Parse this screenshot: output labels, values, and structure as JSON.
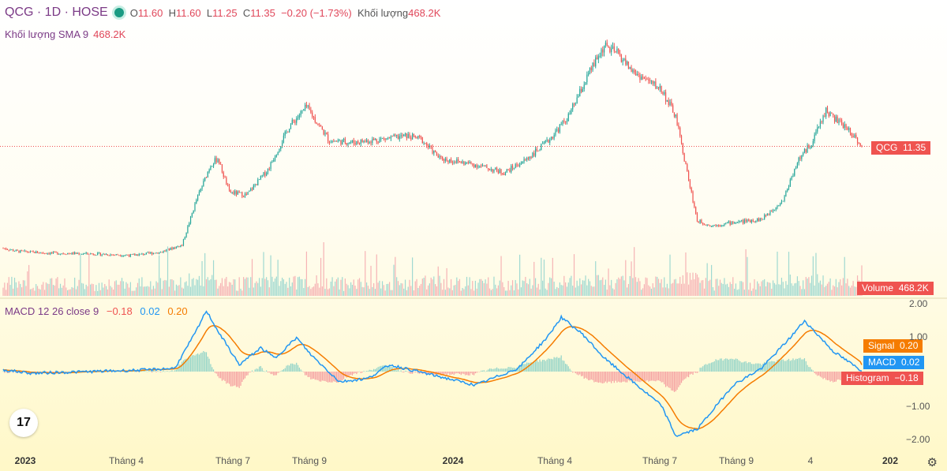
{
  "header": {
    "symbol": "QCG · 1D · HOSE",
    "ohlc": {
      "o_label": "O",
      "o": "11.60",
      "h_label": "H",
      "h": "11.60",
      "l_label": "L",
      "l": "11.25",
      "c_label": "C",
      "c": "11.35",
      "change": "−0.20 (−1.73%)",
      "volume_label": "Khối lượng",
      "volume": "468.2K"
    },
    "volume_sma_label": "Khối lượng SMA 9",
    "volume_sma_value": "468.2K",
    "macd_label": "MACD 12 26 close 9",
    "macd_hist_value": "−0.18",
    "macd_value": "0.02",
    "macd_signal_value": "0.20"
  },
  "price_tag": {
    "symbol": "QCG",
    "value": "11.35"
  },
  "volume_tag": {
    "label": "Volume",
    "value": "468.2K"
  },
  "macd_tags": [
    {
      "label": "Signal",
      "value": "0.20",
      "color": "#f57c00"
    },
    {
      "label": "MACD",
      "value": "0.02",
      "color": "#2196f3"
    },
    {
      "label": "Histogram",
      "value": "−0.18",
      "color": "#ef5350"
    }
  ],
  "macd_axis": [
    "2.00",
    "1.00",
    "−1.00",
    "−2.00"
  ],
  "x_axis": [
    {
      "label": "2023",
      "bold": true
    },
    {
      "label": "Tháng 4",
      "bold": false
    },
    {
      "label": "Tháng 7",
      "bold": false
    },
    {
      "label": "Tháng 9",
      "bold": false
    },
    {
      "label": "2024",
      "bold": true
    },
    {
      "label": "Tháng 4",
      "bold": false
    },
    {
      "label": "Tháng 7",
      "bold": false
    },
    {
      "label": "Tháng 9",
      "bold": false
    },
    {
      "label": "4",
      "bold": false
    },
    {
      "label": "202",
      "bold": true
    }
  ],
  "colors": {
    "up": "#26a69a",
    "down": "#ef5350",
    "macd": "#2196f3",
    "signal": "#f57c00",
    "accent": "#7b3a86"
  },
  "chart_data": {
    "type": "candlestick",
    "price_anchors": [
      [
        0,
        5.0
      ],
      [
        10,
        4.8
      ],
      [
        30,
        4.7
      ],
      [
        60,
        4.65
      ],
      [
        90,
        4.55
      ],
      [
        110,
        4.75
      ],
      [
        125,
        5.2
      ],
      [
        135,
        8.0
      ],
      [
        145,
        10.2
      ],
      [
        150,
        10.6
      ],
      [
        158,
        8.5
      ],
      [
        170,
        8.3
      ],
      [
        185,
        9.9
      ],
      [
        200,
        12.6
      ],
      [
        212,
        13.8
      ],
      [
        228,
        11.7
      ],
      [
        245,
        11.6
      ],
      [
        270,
        11.85
      ],
      [
        282,
        12.0
      ],
      [
        292,
        11.8
      ],
      [
        305,
        10.6
      ],
      [
        330,
        10.2
      ],
      [
        350,
        9.7
      ],
      [
        365,
        10.5
      ],
      [
        380,
        11.6
      ],
      [
        395,
        13.2
      ],
      [
        410,
        16.0
      ],
      [
        420,
        17.6
      ],
      [
        430,
        17.1
      ],
      [
        440,
        16.0
      ],
      [
        460,
        14.9
      ],
      [
        470,
        13.2
      ],
      [
        478,
        9.7
      ],
      [
        485,
        6.7
      ],
      [
        495,
        6.4
      ],
      [
        510,
        6.6
      ],
      [
        530,
        6.8
      ],
      [
        545,
        8.0
      ],
      [
        555,
        10.4
      ],
      [
        565,
        11.6
      ],
      [
        575,
        13.6
      ],
      [
        582,
        13.0
      ],
      [
        592,
        12.3
      ],
      [
        600,
        11.35
      ]
    ],
    "volume_sma": "468.2K",
    "macd": {
      "anchors": [
        [
          0,
          0.05
        ],
        [
          20,
          -0.05
        ],
        [
          60,
          0.0
        ],
        [
          100,
          0.05
        ],
        [
          120,
          0.1
        ],
        [
          135,
          1.2
        ],
        [
          142,
          1.8
        ],
        [
          150,
          1.2
        ],
        [
          165,
          0.2
        ],
        [
          180,
          0.7
        ],
        [
          190,
          0.4
        ],
        [
          205,
          1.0
        ],
        [
          215,
          0.5
        ],
        [
          235,
          -0.3
        ],
        [
          255,
          -0.2
        ],
        [
          270,
          0.2
        ],
        [
          300,
          -0.1
        ],
        [
          330,
          -0.4
        ],
        [
          360,
          0.1
        ],
        [
          380,
          1.0
        ],
        [
          390,
          1.6
        ],
        [
          405,
          1.1
        ],
        [
          420,
          0.4
        ],
        [
          440,
          -0.3
        ],
        [
          460,
          -1.0
        ],
        [
          470,
          -1.9
        ],
        [
          485,
          -1.7
        ],
        [
          510,
          -0.4
        ],
        [
          530,
          0.1
        ],
        [
          550,
          1.0
        ],
        [
          560,
          1.5
        ],
        [
          580,
          0.6
        ],
        [
          600,
          0.02
        ]
      ],
      "signal_last": 0.2,
      "hist_last": -0.18,
      "ylim": [
        -2.0,
        2.0
      ]
    }
  }
}
